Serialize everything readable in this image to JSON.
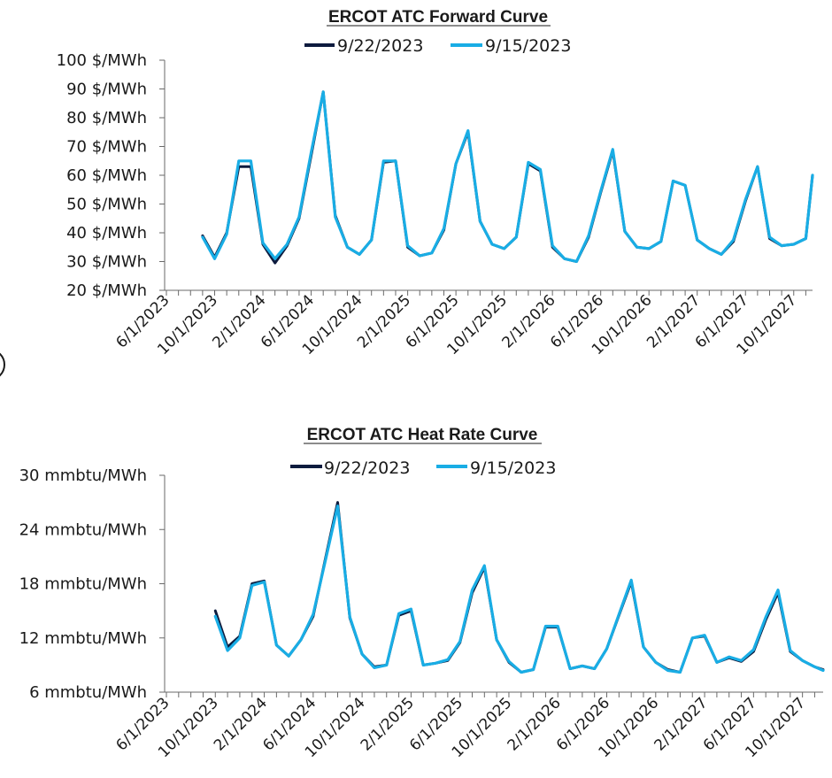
{
  "colors": {
    "series_9_22": "#0d1b3e",
    "series_9_15": "#19ade5",
    "axis": "#6a6a6a"
  },
  "chart_data": [
    {
      "type": "line",
      "title": "ERCOT ATC Forward Curve",
      "xlabel": "",
      "ylabel": "",
      "x_tick_labels": [
        "6/1/2023",
        "10/1/2023",
        "2/1/2024",
        "6/1/2024",
        "10/1/2024",
        "2/1/2025",
        "6/1/2025",
        "10/1/2025",
        "2/1/2026",
        "6/1/2026",
        "10/1/2026",
        "2/1/2027",
        "6/1/2027",
        "10/1/2027"
      ],
      "y_tick_labels": [
        "20 $/MWh",
        "30 $/MWh",
        "40 $/MWh",
        "50 $/MWh",
        "60 $/MWh",
        "70 $/MWh",
        "80 $/MWh",
        "90 $/MWh",
        "100 $/MWh"
      ],
      "y_ticks": [
        20,
        30,
        40,
        50,
        60,
        70,
        80,
        90,
        100
      ],
      "ylim": [
        20,
        100
      ],
      "x_start": "2023-06",
      "month_count": 55,
      "series": [
        {
          "name": "9/22/2023",
          "start_index": 3,
          "values": [
            39,
            31.5,
            40,
            63,
            63,
            36,
            29.5,
            35.5,
            45,
            67,
            89,
            46,
            35,
            32.5,
            37.5,
            64.5,
            65,
            35,
            32,
            33,
            41,
            64,
            75,
            44,
            36,
            34.5,
            38.5,
            64,
            61.5,
            35,
            31,
            30,
            38.5,
            54,
            68.5,
            40.5,
            35,
            34.5,
            37,
            58,
            56.5,
            37.5,
            34.5,
            32.5,
            37,
            51,
            63,
            38,
            35.5,
            36,
            38,
            60
          ]
        },
        {
          "name": "9/15/2023",
          "start_index": 3,
          "values": [
            38.5,
            31,
            39.5,
            65,
            65,
            36.5,
            31,
            36,
            45.5,
            68,
            89,
            45.5,
            35,
            32.5,
            37.5,
            65,
            65,
            35.5,
            32,
            33,
            41.5,
            64,
            75.5,
            44,
            36,
            34.5,
            38.5,
            64.5,
            62,
            35.5,
            31,
            30,
            39,
            54.5,
            69,
            40.5,
            35,
            34.5,
            37,
            58,
            56.5,
            37.5,
            34.5,
            32.5,
            37.5,
            51.5,
            63,
            38.5,
            35.5,
            36,
            38,
            60
          ]
        }
      ]
    },
    {
      "type": "line",
      "title": "ERCOT ATC Heat Rate Curve",
      "xlabel": "",
      "ylabel": "",
      "x_tick_labels": [
        "6/1/2023",
        "10/1/2023",
        "2/1/2024",
        "6/1/2024",
        "10/1/2024",
        "2/1/2025",
        "6/1/2025",
        "10/1/2025",
        "2/1/2026",
        "6/1/2026",
        "10/1/2026",
        "2/1/2027",
        "6/1/2027",
        "10/1/2027"
      ],
      "y_tick_labels": [
        "6 mmbtu/MWh",
        "12 mmbtu/MWh",
        "18 mmbtu/MWh",
        "24 mmbtu/MWh",
        "30 mmbtu/MWh"
      ],
      "y_ticks": [
        6,
        12,
        18,
        24,
        30
      ],
      "ylim": [
        6,
        30
      ],
      "x_start": "2023-06",
      "month_count": 55,
      "series": [
        {
          "name": "9/22/2023",
          "start_index": 4,
          "values": [
            15,
            11,
            12.2,
            18,
            18.3,
            11.2,
            10,
            11.8,
            14.4,
            20.8,
            27,
            14.2,
            10.2,
            8.8,
            9,
            14.5,
            15,
            9,
            9.2,
            9.5,
            11.5,
            17,
            19.8,
            11.8,
            9.3,
            8.2,
            8.5,
            13.2,
            13.2,
            8.6,
            8.9,
            8.6,
            10.8,
            14.5,
            18.2,
            11,
            9.3,
            8.5,
            8.2,
            12,
            12.2,
            9.3,
            9.8,
            9.4,
            10.5,
            14,
            17,
            10.5,
            9.5,
            8.8,
            8.5
          ]
        },
        {
          "name": "9/15/2023",
          "start_index": 4,
          "values": [
            14.4,
            10.6,
            12,
            17.8,
            18.2,
            11.2,
            10,
            11.8,
            14.6,
            20.6,
            26.6,
            14.3,
            10.2,
            8.7,
            9,
            14.7,
            15.2,
            9,
            9.2,
            9.6,
            11.6,
            17.3,
            20,
            11.8,
            9.4,
            8.2,
            8.5,
            13.3,
            13.3,
            8.6,
            8.9,
            8.6,
            10.8,
            14.6,
            18.4,
            11,
            9.3,
            8.4,
            8.2,
            12,
            12.3,
            9.3,
            9.9,
            9.5,
            10.7,
            14.3,
            17.3,
            10.6,
            9.5,
            8.8,
            8.4
          ]
        }
      ]
    }
  ]
}
